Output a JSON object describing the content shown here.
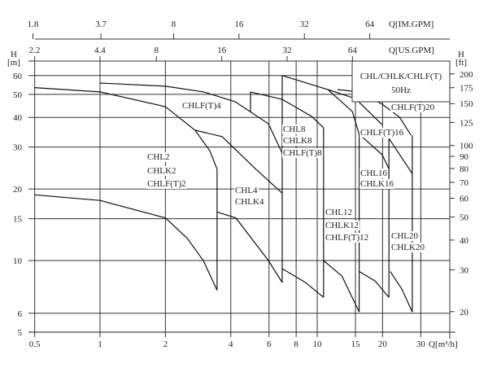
{
  "chart_data": {
    "type": "line",
    "title": "",
    "legend_box": [
      "CHL/CHLK/CHLF(T)",
      "50Hz"
    ],
    "x_axis": {
      "label": "Q[m³/h]",
      "scale": "log",
      "range": [
        0.5,
        33
      ],
      "ticks": [
        0.5,
        1,
        2,
        4,
        6,
        8,
        10,
        15,
        20,
        30
      ],
      "tick_labels": [
        "0.5",
        "1",
        "2",
        "4",
        "6",
        "8",
        "10",
        "15",
        "20",
        "30"
      ]
    },
    "x_axis_top_us": {
      "label": "Q[US.GPM]",
      "ticks": [
        2.2,
        4.4,
        8,
        16,
        32,
        64
      ],
      "tick_labels": [
        "2.2",
        "4.4",
        "8",
        "16",
        "32",
        "64"
      ]
    },
    "x_axis_top_im": {
      "label": "Q[IM.GPM]",
      "ticks": [
        1.8,
        3.7,
        8,
        16,
        32,
        64
      ],
      "tick_labels": [
        "1.8",
        "3.7",
        "8",
        "16",
        "32",
        "64"
      ]
    },
    "y_axis_left": {
      "label_top": "H",
      "label_unit": "[m]",
      "scale": "log",
      "range": [
        5,
        69
      ],
      "ticks": [
        5,
        6,
        10,
        15,
        20,
        30,
        40,
        50,
        60
      ],
      "tick_labels": [
        "5",
        "6",
        "10",
        "15",
        "20",
        "30",
        "40",
        "50",
        "60"
      ]
    },
    "y_axis_right": {
      "label_top": "H",
      "label_unit": "[ft]",
      "ticks": [
        20,
        30,
        40,
        50,
        60,
        70,
        80,
        90,
        100,
        125,
        150,
        175,
        200
      ],
      "tick_labels": [
        "20",
        "30",
        "40",
        "50",
        "60",
        "70",
        "80",
        "90",
        "100",
        "125",
        "150",
        "175",
        "200"
      ]
    },
    "grid": true,
    "series": [
      {
        "points": [
          [
            0.5,
            53.4
          ],
          [
            1,
            51.2
          ],
          [
            2,
            44.4
          ],
          [
            2.74,
            35.3
          ],
          [
            3.2,
            29.0
          ],
          [
            3.46,
            24.2
          ]
        ]
      },
      {
        "points": [
          [
            0.5,
            18.9
          ],
          [
            1,
            17.9
          ],
          [
            2,
            15.1
          ],
          [
            2.52,
            12.4
          ],
          [
            2.99,
            10
          ],
          [
            3.46,
            7.5
          ]
        ]
      },
      {
        "points": [
          [
            1,
            55.8
          ],
          [
            2,
            54.1
          ],
          [
            3,
            51.2
          ],
          [
            4.2,
            46.5
          ],
          [
            5.96,
            37.6
          ],
          [
            6.9,
            28.3
          ]
        ]
      },
      {
        "points": [
          [
            2.74,
            35.3
          ],
          [
            3.65,
            33.2
          ],
          [
            5.15,
            24.5
          ],
          [
            6.9,
            19.2
          ]
        ]
      },
      {
        "points": [
          [
            3.46,
            16.0
          ],
          [
            4.22,
            15.1
          ],
          [
            5.96,
            10
          ],
          [
            6.9,
            8.08
          ]
        ]
      },
      {
        "points": [
          [
            4.93,
            51.2
          ],
          [
            6.9,
            47.6
          ],
          [
            9.42,
            40.4
          ],
          [
            10.7,
            36.2
          ]
        ]
      },
      {
        "points": [
          [
            6.9,
            9.24
          ],
          [
            8.8,
            8.1
          ],
          [
            10.7,
            7.0
          ]
        ]
      },
      {
        "points": [
          [
            6.9,
            60
          ],
          [
            11.2,
            52.4
          ],
          [
            14.5,
            42.4
          ],
          [
            15.6,
            34.0
          ]
        ]
      },
      {
        "points": [
          [
            10.7,
            10
          ],
          [
            13.0,
            8.6
          ],
          [
            15.6,
            6.08
          ]
        ]
      },
      {
        "points": [
          [
            11.2,
            52.4
          ],
          [
            15,
            48
          ],
          [
            19.9,
            37.3
          ]
        ]
      },
      {
        "points": [
          [
            15.6,
            34
          ],
          [
            19.9,
            27.9
          ],
          [
            21.4,
            24.3
          ]
        ]
      },
      {
        "points": [
          [
            15.6,
            9.0
          ],
          [
            18.5,
            8.2
          ],
          [
            21.4,
            7.0
          ]
        ]
      },
      {
        "points": [
          [
            12.4,
            52.4
          ],
          [
            15.6,
            51.2
          ],
          [
            19.9,
            45.5
          ],
          [
            24,
            40
          ],
          [
            27,
            33.7
          ]
        ]
      },
      {
        "points": [
          [
            21.4,
            32.6
          ],
          [
            27.4,
            23.2
          ]
        ]
      },
      {
        "points": [
          [
            21.7,
            9.0
          ],
          [
            24.5,
            7.6
          ],
          [
            27.4,
            6.08
          ]
        ]
      },
      {
        "points": [
          [
            3.46,
            24.2
          ],
          [
            3.46,
            7.5
          ]
        ]
      },
      {
        "points": [
          [
            6.9,
            60
          ],
          [
            6.9,
            8.08
          ]
        ]
      },
      {
        "points": [
          [
            4.93,
            51.2
          ],
          [
            4.93,
            42.1
          ]
        ]
      },
      {
        "points": [
          [
            10.7,
            36.2
          ],
          [
            10.7,
            7.0
          ]
        ]
      },
      {
        "points": [
          [
            15.6,
            34.0
          ],
          [
            15.6,
            6.08
          ]
        ]
      },
      {
        "points": [
          [
            21.4,
            32.6
          ],
          [
            21.4,
            7.0
          ]
        ]
      },
      {
        "points": [
          [
            27.4,
            33.7
          ],
          [
            27.4,
            6.08
          ]
        ]
      }
    ],
    "annotations": {
      "chlft4": "CHLF(T)4",
      "chl2": "CHL2",
      "chlk2": "CHLK2",
      "chlft2": "CHLF(T)2",
      "chl4": "CHL4",
      "chlk4": "CHLK4",
      "chl8": "CHL8",
      "chlk8": "CHLK8",
      "chlft8": "CHLF(T)8",
      "chl12": "CHL12",
      "chlk12": "CHLK12",
      "chlft12": "CHLF(T)12",
      "chlft16": "CHLF(T)16",
      "chl16": "CHL16",
      "chlk16": "CHLK16",
      "chlft20": "CHLF(T)20",
      "chl20": "CHL20",
      "chlk20": "CHLK20"
    }
  }
}
